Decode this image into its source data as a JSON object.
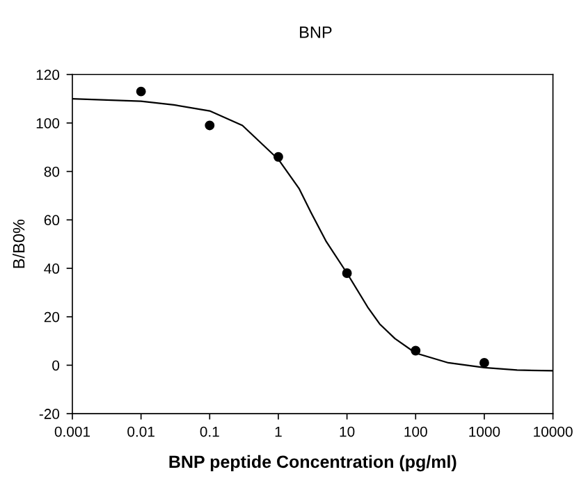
{
  "chart_data": {
    "type": "scatter",
    "title": "BNP",
    "xlabel": "BNP peptide Concentration (pg/ml)",
    "ylabel": "B/B0%",
    "log": "x",
    "xlim": [
      0.001,
      10000
    ],
    "xticks": [
      0.001,
      0.01,
      0.1,
      1,
      10,
      100,
      1000,
      10000
    ],
    "ylim": [
      -20,
      120
    ],
    "yticks": [
      -20,
      0,
      20,
      40,
      60,
      80,
      100,
      120
    ],
    "grid": false,
    "series": [
      {
        "color": "#000000",
        "marker": "circle",
        "x": [
          0.01,
          0.1,
          1,
          10,
          100,
          1000
        ],
        "values": [
          113,
          99,
          86,
          38,
          6,
          1
        ]
      },
      {
        "type": "line",
        "color": "#000000",
        "marker": "none",
        "line_style": "solid",
        "x": [
          0.001,
          0.01,
          0.03,
          0.1,
          0.3,
          1,
          2,
          3,
          5,
          10,
          20,
          30,
          50,
          100,
          300,
          1000,
          3000,
          10000
        ],
        "values": [
          110,
          109,
          107.5,
          105,
          99,
          85,
          73,
          63,
          51,
          38,
          24,
          17,
          11,
          5,
          1,
          -1,
          -2,
          -2.3
        ]
      }
    ]
  }
}
